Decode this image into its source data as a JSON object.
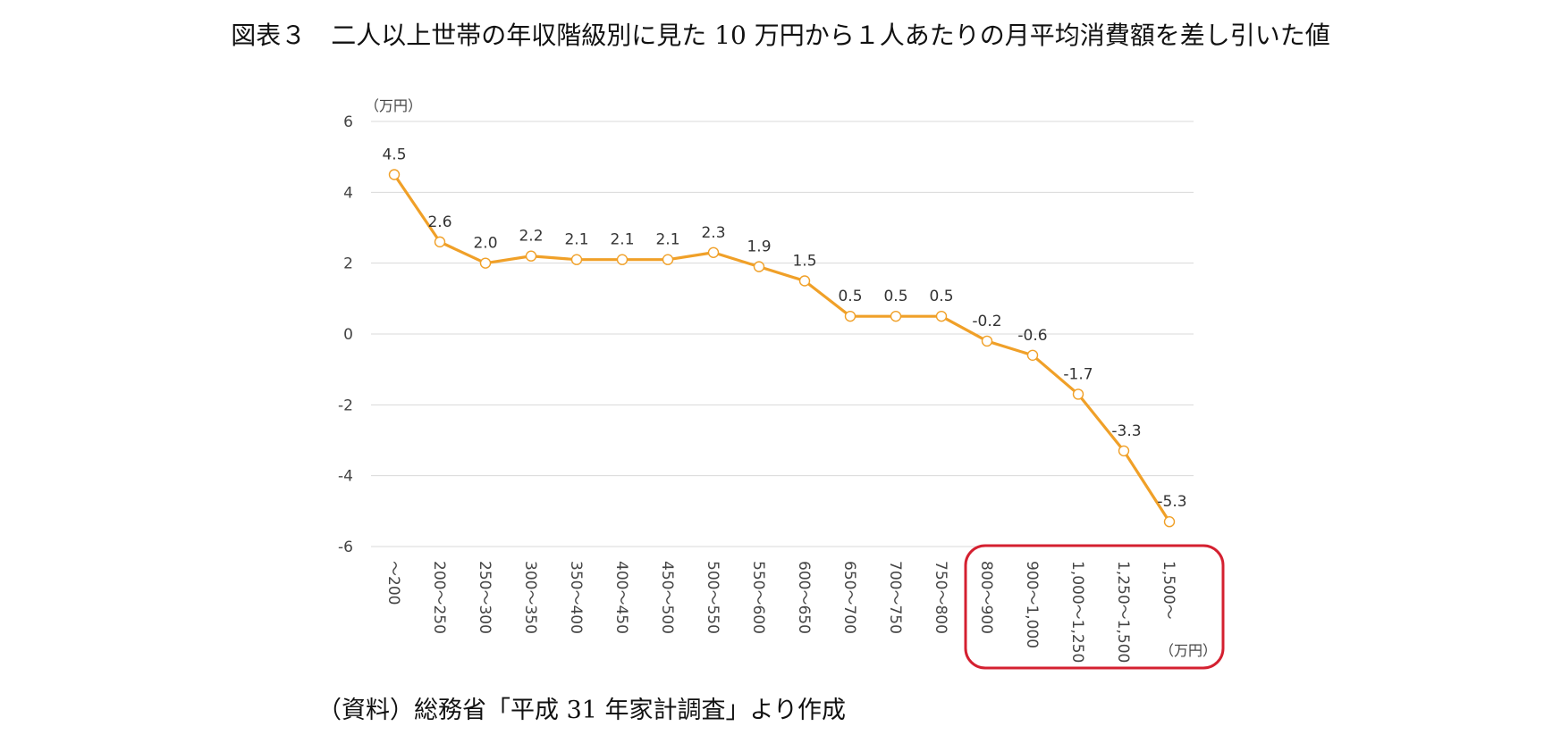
{
  "title": "図表３　二人以上世帯の年収階級別に見た 10 万円から１人あたりの月平均消費額を差し引いた値",
  "source": "（資料）総務省「平成 31 年家計調査」より作成",
  "chart_data": {
    "type": "line",
    "title": "図表３　二人以上世帯の年収階級別に見た 10 万円から１人あたりの月平均消費額を差し引いた値",
    "y_unit": "（万円）",
    "x_unit": "（万円）",
    "ylim": [
      -6,
      6
    ],
    "yticks": [
      "6",
      "4",
      "2",
      "0",
      "-2",
      "-4",
      "-6"
    ],
    "ytick_values": [
      6,
      4,
      2,
      0,
      -2,
      -4,
      -6
    ],
    "categories": [
      "～200",
      "200～250",
      "250～300",
      "300～350",
      "350～400",
      "400～450",
      "450～500",
      "500～550",
      "550～600",
      "600～650",
      "650～700",
      "700～750",
      "750～800",
      "800～900",
      "900～1,000",
      "1,000～1,250",
      "1,250～1,500",
      "1,500～"
    ],
    "series": [
      {
        "name": "10万円－1人あたり月平均消費額",
        "values": [
          4.5,
          2.6,
          2.0,
          2.2,
          2.1,
          2.1,
          2.1,
          2.3,
          1.9,
          1.5,
          0.5,
          0.5,
          0.5,
          -0.2,
          -0.6,
          -1.7,
          -3.3,
          -5.3
        ],
        "labels": [
          "4.5",
          "2.6",
          "2.0",
          "2.2",
          "2.1",
          "2.1",
          "2.1",
          "2.3",
          "1.9",
          "1.5",
          "0.5",
          "0.5",
          "0.5",
          "-0.2",
          "-0.6",
          "-1.7",
          "-3.3",
          "-5.3"
        ],
        "color": "#F0A028"
      }
    ],
    "highlight_color": "#D42030",
    "grid": true
  }
}
